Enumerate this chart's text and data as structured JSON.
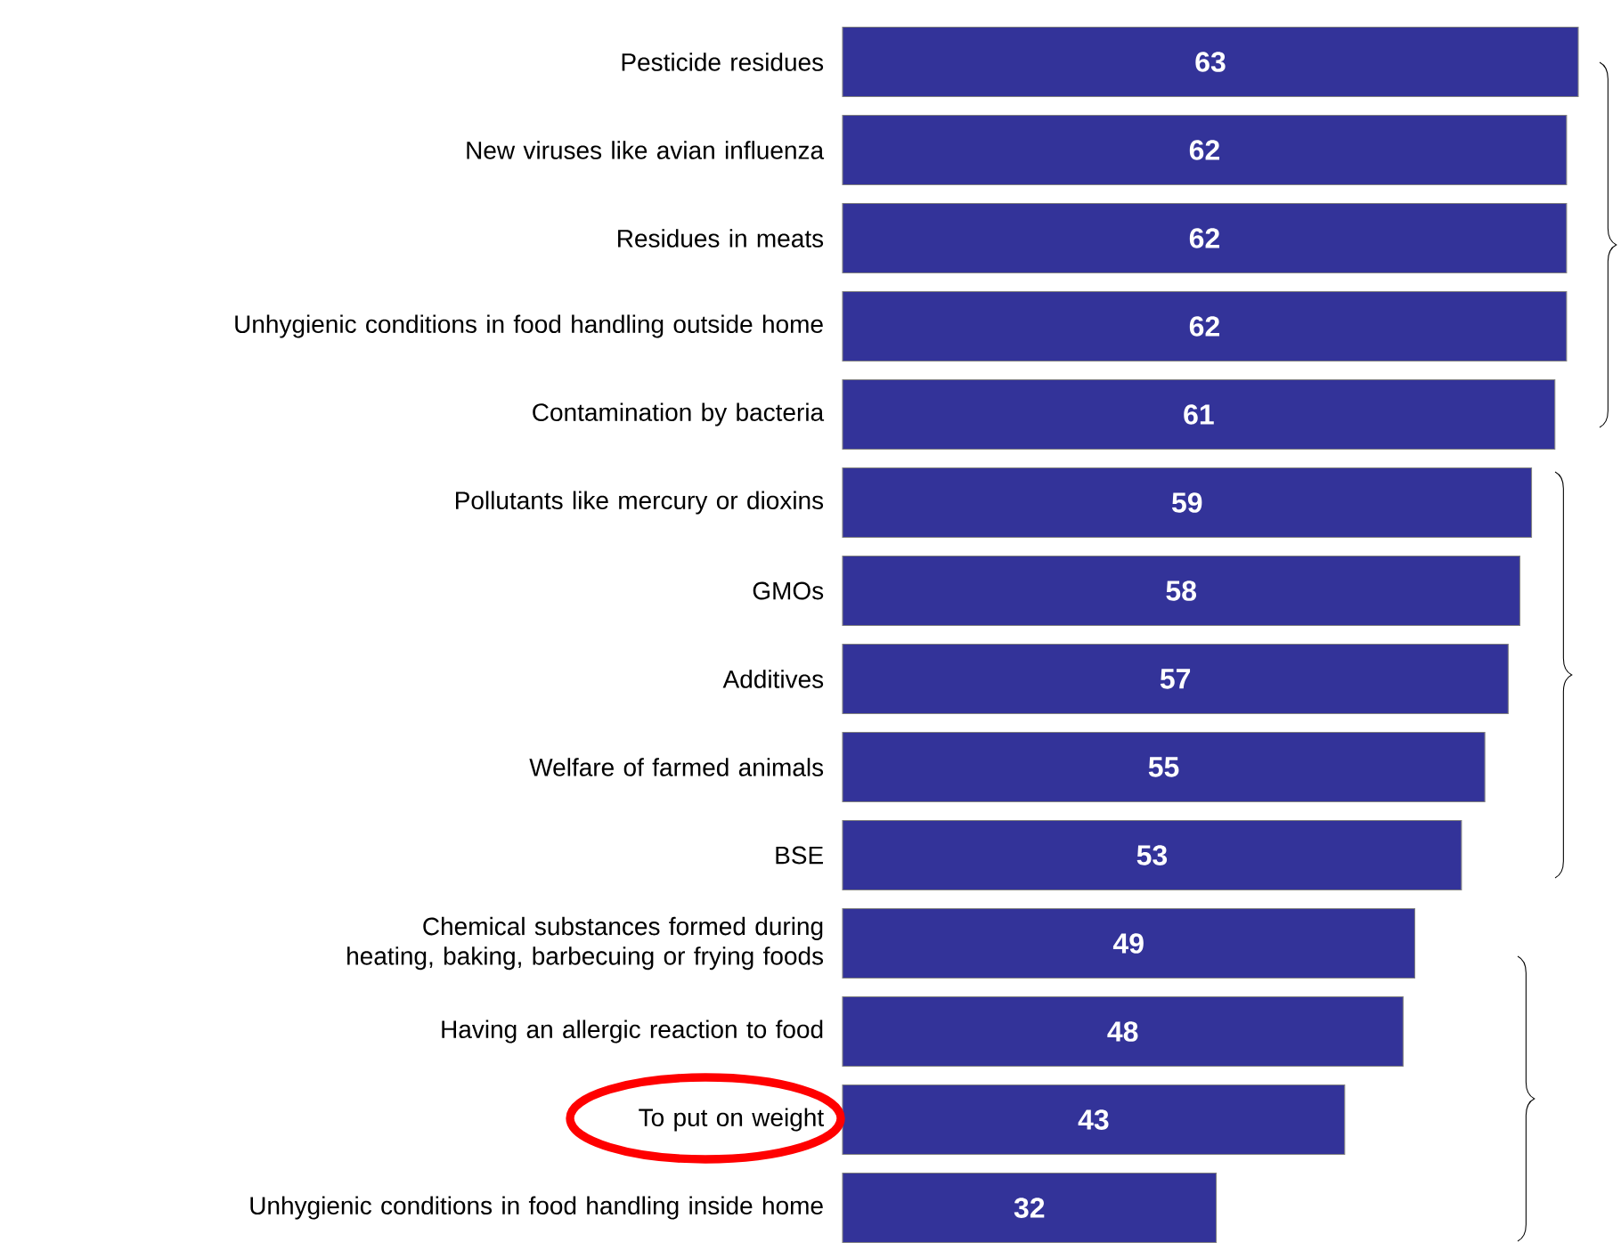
{
  "chart_data": {
    "type": "bar",
    "orientation": "horizontal",
    "categories": [
      "Pesticide residues",
      "New viruses like avian influenza",
      "Residues in meats",
      "Unhygienic conditions in food handling outside home",
      "Contamination by bacteria",
      "Pollutants like mercury or dioxins",
      "GMOs",
      "Additives",
      "Welfare of farmed animals",
      "BSE",
      "Chemical substances formed during heating, baking, barbecuing or frying foods",
      "Having an allergic reaction to food",
      "To put on weight",
      "Unhygienic conditions in food handling inside home"
    ],
    "values": [
      63,
      62,
      62,
      62,
      61,
      59,
      58,
      57,
      55,
      53,
      49,
      48,
      43,
      32
    ],
    "color": "#333399",
    "data_labels": true,
    "tick_labels": "y"
  }
}
